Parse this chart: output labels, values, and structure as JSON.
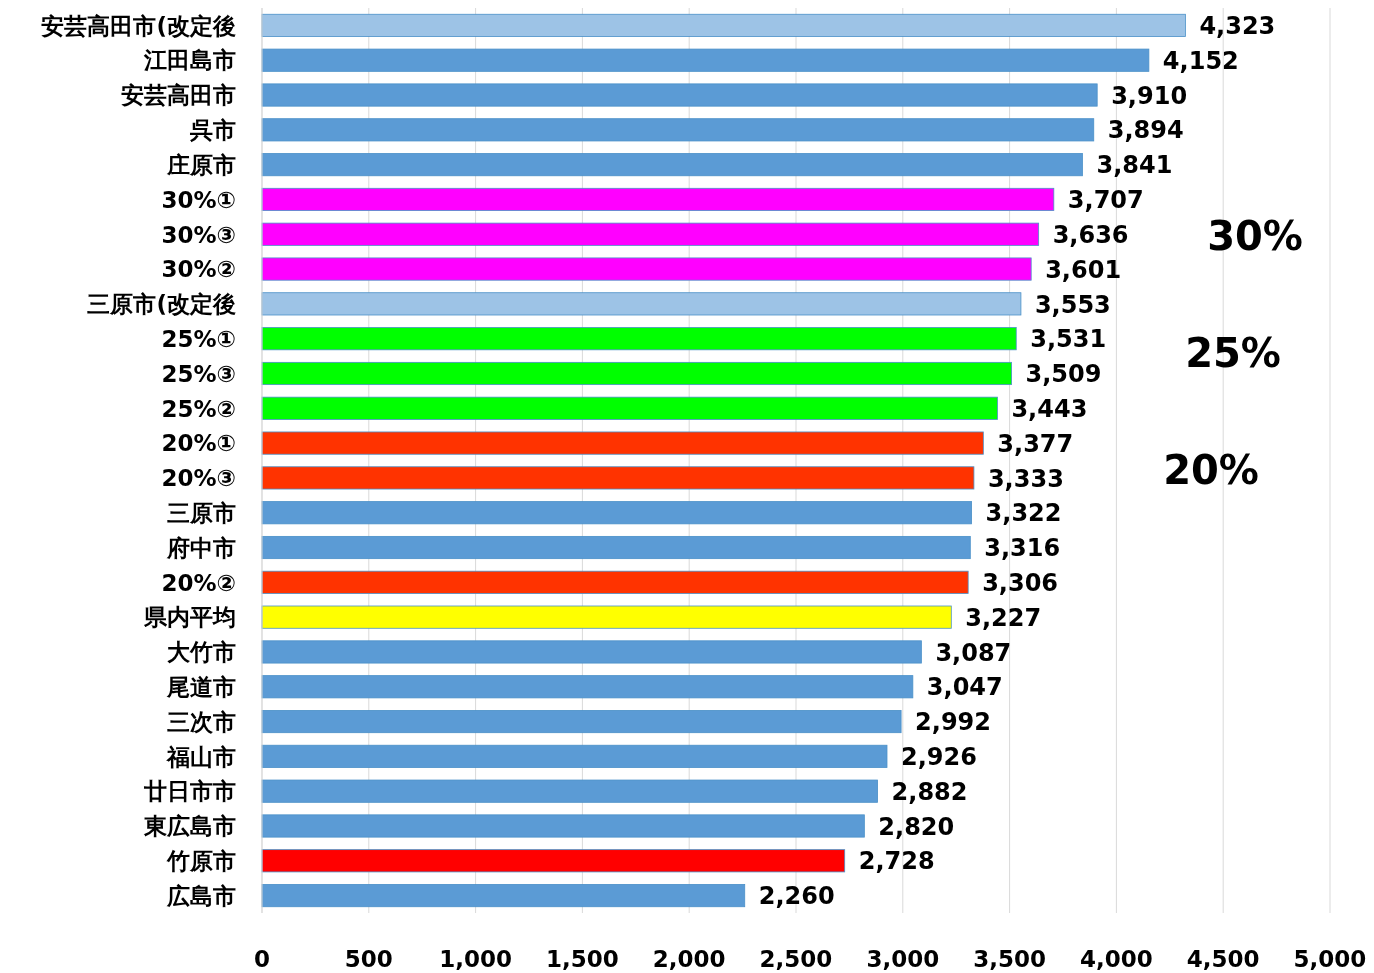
{
  "chart_data": {
    "type": "bar",
    "orientation": "horizontal",
    "categories": [
      "安芸高田市(改定後",
      "江田島市",
      "安芸高田市",
      "呉市",
      "庄原市",
      "30%①",
      "30%③",
      "30%②",
      "三原市(改定後",
      "25%①",
      "25%③",
      "25%②",
      "20%①",
      "20%③",
      "三原市",
      "府中市",
      "20%②",
      "県内平均",
      "大竹市",
      "尾道市",
      "三次市",
      "福山市",
      "廿日市市",
      "東広島市",
      "竹原市",
      "広島市"
    ],
    "values": [
      4323,
      4152,
      3910,
      3894,
      3841,
      3707,
      3636,
      3601,
      3553,
      3531,
      3509,
      3443,
      3377,
      3333,
      3322,
      3316,
      3306,
      3227,
      3087,
      3047,
      2992,
      2926,
      2882,
      2820,
      2728,
      2260
    ],
    "value_labels": [
      "4,323",
      "4,152",
      "3,910",
      "3,894",
      "3,841",
      "3,707",
      "3,636",
      "3,601",
      "3,553",
      "3,531",
      "3,509",
      "3,443",
      "3,377",
      "3,333",
      "3,322",
      "3,316",
      "3,306",
      "3,227",
      "3,087",
      "3,047",
      "2,992",
      "2,926",
      "2,882",
      "2,820",
      "2,728",
      "2,260"
    ],
    "colors": [
      "#9dc3e6",
      "#5b9bd5",
      "#5b9bd5",
      "#5b9bd5",
      "#5b9bd5",
      "#ff00ff",
      "#ff00ff",
      "#ff00ff",
      "#9dc3e6",
      "#00ff00",
      "#00ff00",
      "#00ff00",
      "#ff3300",
      "#ff3300",
      "#5b9bd5",
      "#5b9bd5",
      "#ff3300",
      "#ffff00",
      "#5b9bd5",
      "#5b9bd5",
      "#5b9bd5",
      "#5b9bd5",
      "#5b9bd5",
      "#5b9bd5",
      "#ff0000",
      "#5b9bd5"
    ],
    "xlim": [
      0,
      5000
    ],
    "xticks": [
      0,
      500,
      {
        "value": 1000,
        "label": "1,000"
      },
      {
        "value": 1500,
        "label": "1,500"
      },
      {
        "value": 2000,
        "label": "2,000"
      },
      {
        "value": 2500,
        "label": "2,500"
      },
      {
        "value": 3000,
        "label": "3,000"
      },
      {
        "value": 3500,
        "label": "3,500"
      },
      {
        "value": 4000,
        "label": "4,000"
      },
      {
        "value": 4500,
        "label": "4,500"
      },
      {
        "value": 5000,
        "label": "5,000"
      }
    ],
    "grid": "x",
    "annotations": [
      "30%",
      "25%",
      "20%"
    ]
  }
}
